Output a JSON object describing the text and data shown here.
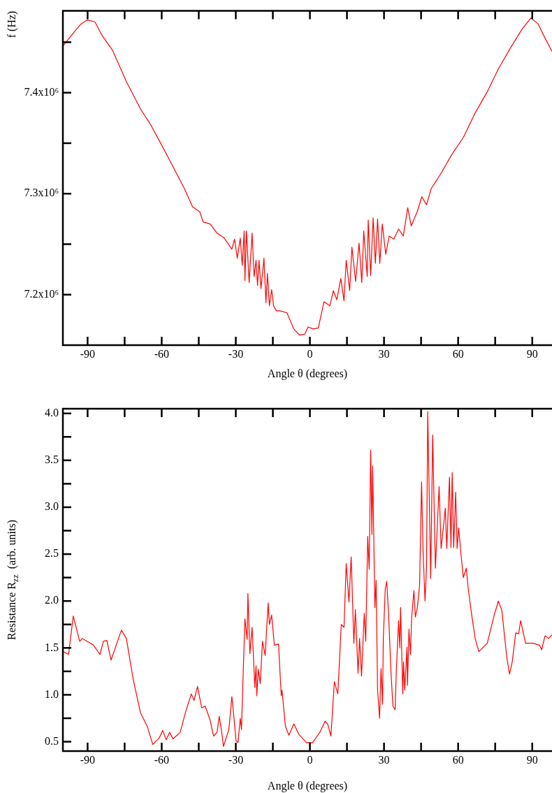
{
  "chart_data": [
    {
      "type": "line",
      "xlabel": "Angle θ (degrees)",
      "ylabel": "f (Hz)",
      "xlim": [
        -100,
        98
      ],
      "ylim": [
        7150000,
        7481000
      ],
      "xticks": [
        -90,
        {
          "value": -75,
          "label": null
        },
        -60,
        {
          "value": -45,
          "label": null
        },
        -30,
        {
          "value": -15,
          "label": null
        },
        0,
        {
          "value": 15,
          "label": null
        },
        30,
        {
          "value": 45,
          "label": null
        },
        60,
        {
          "value": 75,
          "label": null
        },
        90
      ],
      "yticks": [
        {
          "value": 7200000,
          "label": "7.2x10⁶"
        },
        {
          "value": 7250000,
          "label": null
        },
        {
          "value": 7300000,
          "label": "7.3x10⁶"
        },
        {
          "value": 7350000,
          "label": null
        },
        {
          "value": 7400000,
          "label": "7.4x10⁶"
        },
        {
          "value": 7450000,
          "label": null
        }
      ],
      "series": [
        {
          "color": "#ff0000",
          "x": [
            -99.7,
            -95.8,
            -92.7,
            -90.1,
            -87.0,
            -84.2,
            -79.9,
            -74.3,
            -68.6,
            -64.4,
            -60.2,
            -55.9,
            -50.8,
            -47.5,
            -44.6,
            -43.2,
            -40.4,
            -37.6,
            -34.7,
            -31.6,
            -30.5,
            -29.4,
            -28.2,
            -27.4,
            -26.6,
            -26.3,
            -25.7,
            -24.6,
            -23.4,
            -22.6,
            -21.8,
            -21.2,
            -20.6,
            -19.8,
            -18.6,
            -17.8,
            -17.2,
            -16.4,
            -15.5,
            -14.7,
            -13.6,
            -12.1,
            -9.3,
            -6.5,
            -4.2,
            -2.0,
            -0.8,
            1.4,
            3.4,
            5.7,
            8.1,
            9.5,
            10.9,
            12.5,
            13.8,
            14.7,
            16.1,
            17.0,
            18.5,
            19.9,
            21.0,
            21.8,
            23.2,
            23.6,
            24.6,
            25.6,
            26.5,
            27.4,
            28.3,
            29.3,
            30.7,
            32.1,
            34.0,
            35.9,
            37.8,
            39.6,
            41.0,
            43.4,
            45.3,
            47.2,
            49.1,
            52.8,
            57.5,
            62.2,
            66.9,
            71.6,
            76.4,
            81.1,
            85.9,
            89.5,
            92.4,
            95.2,
            98.0
          ],
          "values": [
            7447000,
            7459000,
            7468000,
            7472000,
            7470000,
            7457000,
            7442000,
            7411000,
            7384000,
            7368000,
            7349000,
            7329000,
            7305000,
            7287000,
            7282000,
            7272000,
            7270000,
            7261000,
            7256000,
            7245000,
            7255000,
            7236000,
            7256000,
            7229000,
            7263000,
            7214000,
            7263000,
            7212000,
            7261000,
            7218000,
            7234000,
            7209000,
            7234000,
            7206000,
            7236000,
            7192000,
            7221000,
            7189000,
            7205000,
            7189000,
            7184000,
            7184000,
            7182000,
            7166000,
            7160000,
            7161000,
            7168000,
            7166000,
            7167000,
            7193000,
            7189000,
            7204000,
            7195000,
            7216000,
            7194000,
            7234000,
            7204000,
            7247000,
            7213000,
            7251000,
            7212000,
            7263000,
            7218000,
            7274000,
            7219000,
            7276000,
            7231000,
            7275000,
            7231000,
            7270000,
            7240000,
            7258000,
            7255000,
            7265000,
            7258000,
            7286000,
            7268000,
            7282000,
            7297000,
            7289000,
            7305000,
            7319000,
            7339000,
            7356000,
            7380000,
            7400000,
            7424000,
            7444000,
            7463000,
            7474000,
            7468000,
            7454000,
            7441000
          ]
        }
      ]
    },
    {
      "type": "line",
      "xlabel": "Angle θ (degrees)",
      "ylabel": "Resistance R$_{zz}$  (arb. units)",
      "xlim": [
        -100,
        98
      ],
      "ylim": [
        0.4,
        4.05
      ],
      "xticks": [
        -90,
        {
          "value": -75,
          "label": null
        },
        -60,
        {
          "value": -45,
          "label": null
        },
        -30,
        {
          "value": -15,
          "label": null
        },
        0,
        {
          "value": 15,
          "label": null
        },
        30,
        {
          "value": 45,
          "label": null
        },
        60,
        {
          "value": 75,
          "label": null
        },
        90
      ],
      "yticks": [
        0.5,
        {
          "value": 0.75,
          "label": null
        },
        {
          "value": 1,
          "label": "1.0"
        },
        {
          "value": 1.25,
          "label": null
        },
        1.5,
        {
          "value": 1.75,
          "label": null
        },
        {
          "value": 2,
          "label": "2.0"
        },
        {
          "value": 2.25,
          "label": null
        },
        2.5,
        {
          "value": 2.75,
          "label": null
        },
        {
          "value": 3,
          "label": "3.0"
        },
        {
          "value": 3.25,
          "label": null
        },
        3.5,
        {
          "value": 3.75,
          "label": null
        },
        {
          "value": 4,
          "label": "4.0"
        }
      ],
      "series": [
        {
          "color": "#ff0000",
          "x": [
            -99.7,
            -97.7,
            -95.8,
            -93.2,
            -92.1,
            -87.6,
            -85.0,
            -83.6,
            -82.2,
            -80.5,
            -76.3,
            -74.3,
            -71.5,
            -68.6,
            -65.8,
            -63.6,
            -61.0,
            -59.6,
            -58.2,
            -56.8,
            -55.4,
            -52.5,
            -50.3,
            -48.0,
            -46.9,
            -45.5,
            -43.8,
            -42.4,
            -40.4,
            -39.0,
            -37.6,
            -36.7,
            -35.6,
            -35.0,
            -32.8,
            -31.6,
            -30.8,
            -29.9,
            -29.1,
            -28.2,
            -27.7,
            -27.1,
            -26.3,
            -25.4,
            -25.1,
            -24.3,
            -23.4,
            -22.3,
            -21.8,
            -21.5,
            -20.9,
            -20.1,
            -19.2,
            -18.1,
            -16.9,
            -16.4,
            -15.5,
            -14.4,
            -12.7,
            -11.6,
            -11.3,
            -9.9,
            -8.5,
            -6.5,
            -4.5,
            -1.4,
            1.1,
            4.0,
            6.2,
            7.3,
            8.5,
            9.9,
            11.3,
            12.7,
            13.8,
            14.7,
            15.8,
            16.7,
            17.8,
            18.4,
            19.5,
            20.1,
            20.9,
            22.0,
            22.6,
            23.4,
            24.0,
            24.6,
            25.1,
            25.4,
            26.3,
            26.8,
            27.4,
            28.2,
            28.8,
            29.4,
            29.7,
            30.5,
            31.1,
            31.9,
            32.8,
            33.6,
            34.5,
            35.0,
            35.9,
            36.4,
            36.7,
            37.6,
            37.9,
            38.4,
            39.3,
            39.5,
            40.1,
            40.7,
            41.2,
            42.1,
            42.7,
            43.5,
            44.4,
            45.2,
            45.8,
            46.6,
            47.2,
            47.7,
            48.9,
            49.7,
            50.8,
            52.3,
            53.1,
            54.0,
            54.8,
            55.4,
            56.5,
            57.1,
            57.6,
            58.2,
            59.0,
            59.6,
            60.2,
            61.3,
            62.1,
            63.3,
            64.1,
            65.5,
            66.9,
            68.4,
            71.8,
            74.6,
            76.3,
            77.7,
            79.7,
            80.8,
            81.9,
            83.3,
            84.5,
            85.3,
            87.3,
            90.4,
            92.9,
            93.8,
            95.2,
            96.6,
            98.0
          ],
          "values": [
            1.46,
            1.43,
            1.84,
            1.57,
            1.6,
            1.53,
            1.43,
            1.57,
            1.58,
            1.37,
            1.69,
            1.6,
            1.16,
            0.81,
            0.66,
            0.47,
            0.54,
            0.62,
            0.52,
            0.6,
            0.53,
            0.6,
            0.82,
            1.01,
            0.94,
            1.09,
            0.86,
            0.88,
            0.73,
            0.56,
            0.6,
            0.77,
            0.58,
            0.45,
            0.63,
            0.98,
            0.77,
            0.51,
            0.49,
            0.75,
            0.63,
            1.16,
            1.81,
            1.59,
            2.08,
            1.44,
            1.72,
            1.08,
            1.31,
            0.99,
            1.27,
            1.12,
            1.57,
            1.42,
            1.98,
            1.75,
            1.85,
            1.53,
            1.54,
            0.99,
            1.05,
            0.66,
            0.57,
            0.69,
            0.58,
            0.49,
            0.49,
            0.6,
            0.72,
            0.68,
            0.56,
            1.14,
            1.01,
            1.75,
            1.72,
            2.4,
            1.99,
            2.47,
            1.55,
            1.91,
            1.23,
            1.6,
            1.2,
            1.87,
            1.57,
            2.69,
            2.34,
            3.61,
            2.71,
            3.44,
            1.93,
            2.22,
            1.05,
            0.75,
            1.28,
            0.9,
            1.59,
            2.13,
            2.21,
            1.83,
            1.25,
            0.88,
            0.84,
            1.27,
            1.79,
            1.5,
            1.93,
            1.01,
            1.35,
            1.05,
            1.51,
            1.1,
            1.7,
            1.43,
            1.83,
            2.11,
            1.83,
            1.93,
            2.17,
            3.27,
            2.54,
            2.0,
            2.35,
            4.02,
            2.24,
            3.77,
            2.35,
            3.22,
            2.56,
            2.78,
            2.99,
            2.56,
            3.32,
            2.57,
            3.37,
            2.57,
            3.16,
            2.56,
            2.78,
            2.46,
            2.25,
            2.35,
            2.13,
            1.85,
            1.6,
            1.46,
            1.55,
            1.85,
            2.0,
            1.9,
            1.4,
            1.22,
            1.35,
            1.66,
            1.65,
            1.79,
            1.55,
            1.55,
            1.53,
            1.48,
            1.63,
            1.6,
            1.64
          ]
        }
      ]
    }
  ]
}
